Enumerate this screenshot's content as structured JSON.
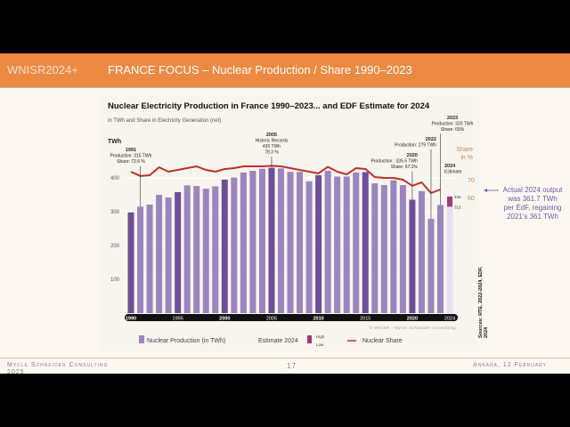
{
  "header": {
    "series": "WNISR2024+",
    "title": "FRANCE FOCUS – Nuclear Production / Share 1990–2023"
  },
  "footer": {
    "left": "Mycle Schneider Consulting",
    "left2": "2025",
    "page": "17",
    "right": "Ankara, 12 February"
  },
  "side_note": [
    "Actual 2024 output",
    "was 361.7 TWh",
    "per ÉdF, regaining",
    "2021's 361 TWh"
  ],
  "chart_data": {
    "type": "bar",
    "title": "Nuclear Electricity Production in France 1990–2023... and EDF Estimate for 2024",
    "subtitle": "in TWh and Share in Electricity Generation (net)",
    "ylabel": "TWh",
    "y2label": [
      "Share",
      "in %"
    ],
    "ylim": [
      0,
      440
    ],
    "yticks": [
      100,
      200,
      300,
      400
    ],
    "y2ticks": [
      60,
      70
    ],
    "years": [
      1990,
      1991,
      1992,
      1993,
      1994,
      1995,
      1996,
      1997,
      1998,
      1999,
      2000,
      2001,
      2002,
      2003,
      2004,
      2005,
      2006,
      2007,
      2008,
      2009,
      2010,
      2011,
      2012,
      2013,
      2014,
      2015,
      2016,
      2017,
      2018,
      2019,
      2020,
      2021,
      2022,
      2023
    ],
    "xtick_labels": [
      "1990",
      "1995",
      "2000",
      "2005",
      "2010",
      "2015",
      "2020",
      "2024"
    ],
    "production": [
      298,
      315,
      321,
      350,
      342,
      358,
      378,
      376,
      368,
      375,
      395,
      401,
      416,
      421,
      427,
      430,
      428,
      418,
      418,
      390,
      408,
      421,
      404,
      404,
      416,
      417,
      384,
      379,
      393,
      379,
      335.5,
      361,
      279,
      320
    ],
    "share": [
      75,
      72.6,
      73,
      77.5,
      75,
      76,
      77,
      78,
      76,
      75,
      76.5,
      77,
      78,
      78,
      78,
      78.3,
      78,
      77,
      76,
      75,
      74,
      77.7,
      75,
      73.5,
      77,
      76.5,
      72,
      71.5,
      71.5,
      70.5,
      67.1,
      69,
      63,
      65
    ],
    "estimate_2024": {
      "low": 315,
      "high": 345,
      "low_label": "315",
      "high_label": "345"
    },
    "annotations": [
      {
        "year": 1991,
        "lines": [
          "1991",
          "Production: 315 TWh",
          "Share: 72.6 %"
        ]
      },
      {
        "year": 2005,
        "lines": [
          "2005",
          "Historic Records",
          "430 TWh",
          "78.3 %"
        ]
      },
      {
        "year": 2020,
        "lines": [
          "2020",
          "Production : 335.5 TWh",
          "Share: 67.1%"
        ]
      },
      {
        "year": 2022,
        "lines": [
          "2022",
          "Production: 279 TWh"
        ]
      },
      {
        "year": 2023,
        "lines": [
          "2023",
          "Production: 320 TWh",
          "Share: 65%"
        ]
      },
      {
        "year": 2024,
        "lines": [
          "2024",
          "Estimate"
        ]
      }
    ],
    "legend": {
      "production": "Nuclear Production (in TWh)",
      "estimate": "Estimate 2024",
      "high": "High",
      "low": "Low",
      "share": "Nuclear Share"
    },
    "credit": "© WNISR - Mycle Schneider Consulting",
    "source": [
      "Sources: RTE, 2022-2024, EDF,",
      "2024"
    ],
    "colors": {
      "bar": "#9a85bf",
      "bar_dark": "#6e4f97",
      "estimate": "#a23a78",
      "share": "#c0302a",
      "axis_share": "#c2855a"
    }
  }
}
